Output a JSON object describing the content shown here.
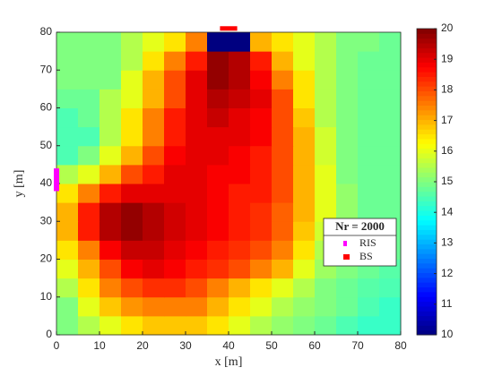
{
  "chart_data": {
    "type": "heatmap",
    "xlabel": "x [m]",
    "ylabel": "y [m]",
    "xlim": [
      0,
      80
    ],
    "ylim": [
      0,
      80
    ],
    "xticks": [
      0,
      10,
      20,
      30,
      40,
      50,
      60,
      70,
      80
    ],
    "yticks": [
      0,
      10,
      20,
      30,
      40,
      50,
      60,
      70,
      80
    ],
    "x_bins": [
      0,
      5,
      10,
      15,
      20,
      25,
      30,
      35,
      40,
      45,
      50,
      55,
      60,
      65,
      70,
      75,
      80
    ],
    "y_bins": [
      0,
      5,
      10,
      15,
      20,
      25,
      30,
      35,
      40,
      45,
      50,
      55,
      60,
      65,
      70,
      75,
      80
    ],
    "z": [
      [
        15,
        15.5,
        16,
        16.5,
        16.8,
        16.8,
        16.8,
        16.5,
        16,
        15.5,
        15.2,
        15,
        14.8,
        14.5,
        14.3,
        14.3
      ],
      [
        15,
        16,
        16.8,
        17.3,
        17.5,
        17.5,
        17.5,
        17,
        16.5,
        16,
        15.5,
        15.2,
        15,
        14.8,
        14.5,
        14.3
      ],
      [
        15.5,
        16.5,
        17.5,
        18,
        18.3,
        18.3,
        18,
        17.5,
        17,
        16.5,
        16,
        15.5,
        15,
        14.8,
        14.6,
        14.5
      ],
      [
        16,
        17,
        18,
        18.8,
        19,
        18.8,
        18.5,
        18.3,
        18,
        17.5,
        17,
        16,
        15.3,
        15,
        14.8,
        14.6
      ],
      [
        16.5,
        17.5,
        18.8,
        19.3,
        19.3,
        19,
        18.8,
        18.5,
        18.3,
        18,
        17.5,
        16.5,
        15.5,
        15,
        14.8,
        14.8
      ],
      [
        17,
        18.5,
        19.5,
        19.8,
        19.5,
        19.2,
        19,
        18.8,
        18.5,
        18.3,
        17.8,
        16.8,
        15.8,
        15.2,
        14.8,
        14.8
      ],
      [
        17,
        18.5,
        19.5,
        19.8,
        19.5,
        19.2,
        19,
        18.8,
        18.5,
        18.3,
        17.8,
        17,
        16,
        15.2,
        14.8,
        14.8
      ],
      [
        16.5,
        17.5,
        18.5,
        19,
        19,
        19,
        19,
        18.8,
        18.5,
        18.5,
        18,
        17,
        16,
        15.2,
        14.8,
        14.8
      ],
      [
        15.5,
        16,
        17,
        18,
        18.5,
        19,
        19,
        18.8,
        18.8,
        18.5,
        18,
        17,
        16,
        15,
        14.8,
        14.8
      ],
      [
        14.5,
        15,
        16,
        17,
        18,
        18.8,
        19,
        19,
        18.8,
        18.5,
        18,
        17,
        15.8,
        15,
        14.8,
        14.8
      ],
      [
        14.5,
        14.5,
        15.5,
        16.5,
        17.5,
        18.5,
        19,
        19,
        19,
        18.8,
        18,
        17,
        15.8,
        15,
        14.8,
        14.8
      ],
      [
        14.5,
        14.8,
        15.5,
        16.5,
        17.5,
        18.5,
        19,
        19.3,
        19,
        18.8,
        18,
        16.8,
        15.5,
        15,
        14.8,
        14.8
      ],
      [
        14.8,
        14.8,
        15.5,
        16,
        17,
        18,
        19,
        19.5,
        19.3,
        19,
        18,
        16.5,
        15.5,
        15,
        14.8,
        14.8
      ],
      [
        15,
        15,
        15,
        16,
        17,
        18,
        19,
        19.8,
        19.5,
        18.8,
        17.5,
        16.5,
        15.5,
        15,
        14.8,
        14.8
      ],
      [
        15,
        15,
        15,
        15.5,
        16.5,
        17.5,
        18.5,
        19.8,
        19.5,
        18.5,
        17,
        16,
        15.5,
        15,
        14.8,
        14.8
      ],
      [
        15,
        15,
        15,
        15.5,
        16,
        16.5,
        17.5,
        10,
        10,
        17,
        16.5,
        16,
        15.5,
        15,
        15,
        14.8
      ]
    ],
    "colormap": "jet",
    "clim": [
      10,
      20
    ],
    "cticks": [
      10,
      11,
      12,
      13,
      14,
      15,
      16,
      17,
      18,
      19,
      20
    ],
    "legend_title": "Nr = 2000",
    "markers": [
      {
        "name": "RIS",
        "color": "#ff00ff",
        "x": [
          0,
          0
        ],
        "y": [
          38,
          44
        ]
      },
      {
        "name": "BS",
        "color": "#ff0000",
        "x": [
          38,
          42
        ],
        "y": [
          81,
          81
        ]
      }
    ]
  }
}
